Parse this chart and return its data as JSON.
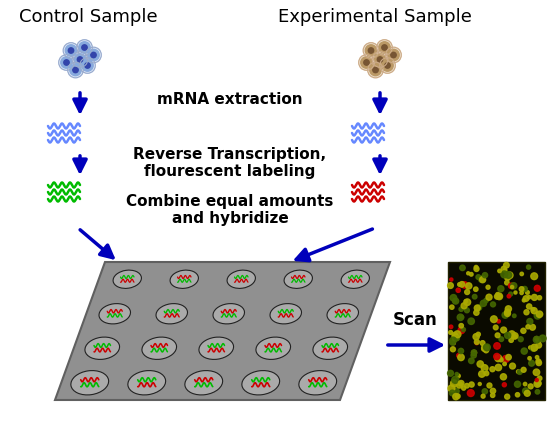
{
  "bg_color": "#ffffff",
  "label_control": "Control Sample",
  "label_experimental": "Experimental Sample",
  "label_mrna": "mRNA extraction",
  "label_rt": "Reverse Transcription,\nflourescent labeling",
  "label_combine": "Combine equal amounts\nand hybridize",
  "label_scan": "Scan",
  "arrow_color": "#0000bb",
  "wave_green": "#00bb00",
  "wave_red": "#cc0000",
  "wave_blue": "#6688ff",
  "chip_color": "#909090",
  "text_color": "#000000",
  "title_fontsize": 13,
  "label_fontsize": 11
}
